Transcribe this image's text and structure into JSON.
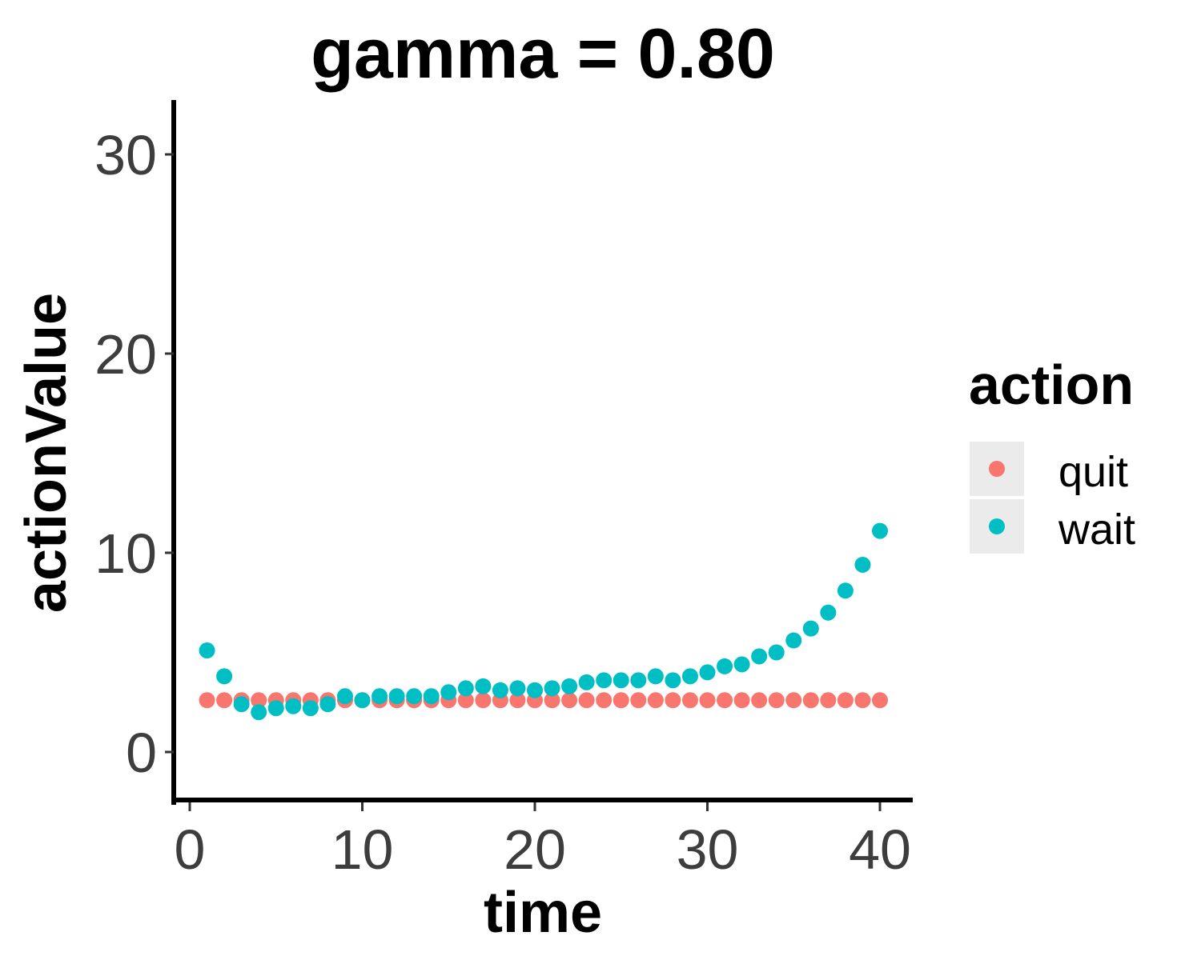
{
  "chart_data": {
    "type": "scatter",
    "title": "gamma = 0.80",
    "xlabel": "time",
    "ylabel": "actionValue",
    "xlim": [
      -1,
      42
    ],
    "ylim": [
      -2.5,
      32.5
    ],
    "xticks": [
      0,
      10,
      20,
      30,
      40
    ],
    "yticks": [
      0,
      10,
      20,
      30
    ],
    "grid": false,
    "legend": {
      "title": "action",
      "placement": "right"
    },
    "x": [
      1,
      2,
      3,
      4,
      5,
      6,
      7,
      8,
      9,
      10,
      11,
      12,
      13,
      14,
      15,
      16,
      17,
      18,
      19,
      20,
      21,
      22,
      23,
      24,
      25,
      26,
      27,
      28,
      29,
      30,
      31,
      32,
      33,
      34,
      35,
      36,
      37,
      38,
      39,
      40
    ],
    "series": [
      {
        "name": "quit",
        "color": "#F8766D",
        "values": [
          2.6,
          2.6,
          2.6,
          2.6,
          2.6,
          2.6,
          2.6,
          2.6,
          2.6,
          2.6,
          2.6,
          2.6,
          2.6,
          2.6,
          2.6,
          2.6,
          2.6,
          2.6,
          2.6,
          2.6,
          2.6,
          2.6,
          2.6,
          2.6,
          2.6,
          2.6,
          2.6,
          2.6,
          2.6,
          2.6,
          2.6,
          2.6,
          2.6,
          2.6,
          2.6,
          2.6,
          2.6,
          2.6,
          2.6,
          2.6
        ]
      },
      {
        "name": "wait",
        "color": "#00BFC4",
        "values": [
          5.1,
          3.8,
          2.4,
          2.0,
          2.2,
          2.3,
          2.2,
          2.4,
          2.8,
          2.6,
          2.8,
          2.8,
          2.8,
          2.8,
          3.0,
          3.2,
          3.3,
          3.1,
          3.2,
          3.1,
          3.2,
          3.3,
          3.5,
          3.6,
          3.6,
          3.6,
          3.8,
          3.6,
          3.8,
          4.0,
          4.3,
          4.4,
          4.8,
          5.0,
          5.6,
          6.2,
          7.0,
          8.1,
          9.4,
          11.1
        ]
      }
    ]
  }
}
